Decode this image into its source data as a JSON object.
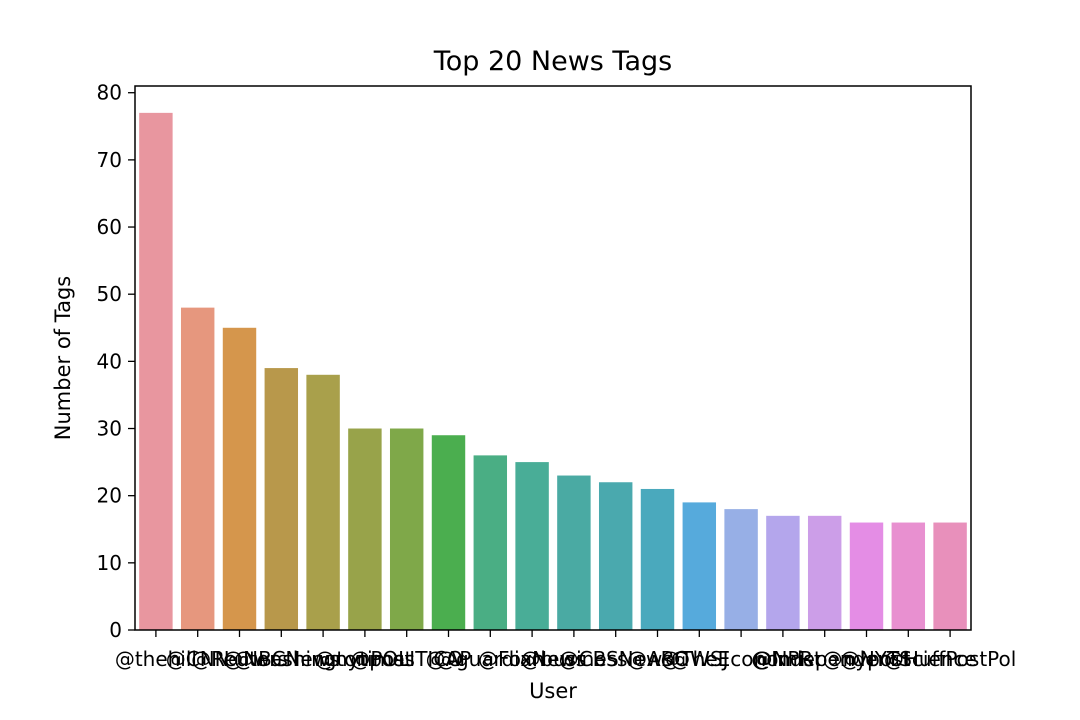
{
  "chart_data": {
    "type": "bar",
    "title": "Top 20 News Tags",
    "xlabel": "User",
    "ylabel": "Number of Tags",
    "ylim": [
      0,
      81
    ],
    "yticks": [
      0,
      10,
      20,
      30,
      40,
      50,
      60,
      70,
      80
    ],
    "grid": false,
    "legend": "none",
    "categories": [
      "@thehill",
      "@CNN",
      "@Reuters",
      "@NBCNews",
      "@washingtonpost",
      "@nytimes",
      "@POLITICO",
      "@AP",
      "@guardian",
      "@FoxNews",
      "@business",
      "@CBSNews",
      "@ABC",
      "@WSJ",
      "@TheEconomist",
      "@NPR",
      "@Independent",
      "@nypost",
      "@NYTScience",
      "@HuffPostPol"
    ],
    "values": [
      77,
      48,
      45,
      39,
      38,
      30,
      30,
      29,
      26,
      25,
      23,
      22,
      21,
      19,
      18,
      17,
      17,
      16,
      16,
      16
    ],
    "colors": [
      "#e8969f",
      "#e6977e",
      "#d5964c",
      "#b8984b",
      "#a9a04b",
      "#98a34a",
      "#7fa849",
      "#4bae4f",
      "#4aae84",
      "#49ad97",
      "#4aaaa3",
      "#4aa9ae",
      "#4aa9bd",
      "#56aadc",
      "#97afe6",
      "#b4a6ec",
      "#cc9ee8",
      "#e48de5",
      "#e890d0",
      "#e890bb"
    ]
  }
}
